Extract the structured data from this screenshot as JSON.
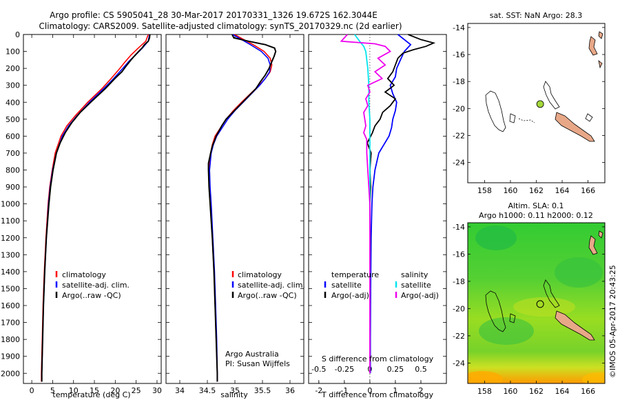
{
  "header": {
    "line1": "Argo profile: CS 5905041_28 30-Mar-2017 20170331_1326 19.672S 162.3044E",
    "line2": "Climatology: CARS2009. Satellite-adjusted climatology: synTS_20170329.nc (2d earlier)"
  },
  "colors": {
    "climatology": "#ff0000",
    "satellite": "#0000ff",
    "argo": "#000000",
    "sal_satellite": "#00e5ee",
    "sal_argo": "#ee00ee",
    "land": "#e8a888"
  },
  "chart_data": [
    {
      "type": "line",
      "title": "temperature",
      "xlabel": "temperature (deg C)",
      "ylabel": "",
      "xlim": [
        -2,
        31
      ],
      "ylim": [
        2060,
        0
      ],
      "xticks": [
        "0",
        "5",
        "10",
        "15",
        "20",
        "25",
        "30"
      ],
      "yticks": [
        "0",
        "100",
        "200",
        "300",
        "400",
        "500",
        "600",
        "700",
        "800",
        "900",
        "1000",
        "1100",
        "1200",
        "1300",
        "1400",
        "1500",
        "1600",
        "1700",
        "1800",
        "1900",
        "2000"
      ],
      "legend": [
        "climatology",
        "satellite-adj. clim.",
        "Argo(..raw -QC)"
      ],
      "series": [
        {
          "name": "climatology",
          "depth": [
            0,
            40,
            80,
            120,
            160,
            200,
            260,
            320,
            400,
            480,
            540,
            600,
            700,
            800,
            900,
            1000,
            1200,
            1400,
            1600,
            1800,
            2000,
            2050
          ],
          "values": [
            27.9,
            27.3,
            25.5,
            23.8,
            22.4,
            21.1,
            19.0,
            16.8,
            13.4,
            10.4,
            8.4,
            7.0,
            5.6,
            4.9,
            4.3,
            3.9,
            3.4,
            3.0,
            2.7,
            2.5,
            2.3,
            2.3
          ]
        },
        {
          "name": "satellite-adj. clim.",
          "depth": [
            0,
            40,
            80,
            120,
            160,
            200,
            260,
            320,
            400,
            480,
            540,
            600,
            700,
            800,
            900,
            1000,
            1200,
            1400,
            1600,
            1800,
            2000,
            2050
          ],
          "values": [
            28.2,
            27.9,
            26.5,
            24.9,
            23.2,
            21.8,
            19.6,
            17.2,
            13.8,
            10.8,
            8.8,
            7.3,
            5.9,
            5.0,
            4.4,
            4.0,
            3.5,
            3.1,
            2.8,
            2.6,
            2.4,
            2.4
          ]
        },
        {
          "name": "Argo(..raw -QC)",
          "depth": [
            0,
            20,
            40,
            60,
            80,
            100,
            140,
            180,
            220,
            260,
            320,
            400,
            460,
            520,
            580,
            640,
            700,
            800,
            900,
            1000,
            1200,
            1400,
            1600,
            1800,
            2000,
            2050
          ],
          "values": [
            28.3,
            28.2,
            27.9,
            27.0,
            26.4,
            25.6,
            24.1,
            22.8,
            21.6,
            19.9,
            17.6,
            14.1,
            11.6,
            9.6,
            8.0,
            6.8,
            5.9,
            5.1,
            4.5,
            4.1,
            3.5,
            3.1,
            2.8,
            2.6,
            2.4,
            2.4
          ]
        }
      ]
    },
    {
      "type": "line",
      "title": "salinity",
      "xlabel": "salinity",
      "xlim": [
        33.75,
        36.25
      ],
      "ylim": [
        2060,
        0
      ],
      "xticks": [
        "34",
        "34.5",
        "35",
        "35.5",
        "36"
      ],
      "legend": [
        "climatology",
        "satellite-adj. clim.",
        "Argo(..raw -QC)"
      ],
      "footer": {
        "line1": "Argo Australia",
        "line2": "PI: Susan Wijffels"
      },
      "series": [
        {
          "name": "climatology",
          "depth": [
            0,
            60,
            100,
            140,
            180,
            220,
            260,
            300,
            350,
            400,
            450,
            500,
            550,
            600,
            650,
            700,
            800,
            900,
            1000,
            1200,
            1400,
            1600,
            1800,
            2000,
            2050
          ],
          "values": [
            34.99,
            35.33,
            35.53,
            35.64,
            35.67,
            35.64,
            35.55,
            35.44,
            35.28,
            35.12,
            34.97,
            34.84,
            34.74,
            34.64,
            34.59,
            34.56,
            34.53,
            34.54,
            34.56,
            34.59,
            34.62,
            34.64,
            34.66,
            34.68,
            34.68
          ]
        },
        {
          "name": "satellite-adj. clim.",
          "depth": [
            0,
            60,
            100,
            140,
            180,
            220,
            260,
            300,
            350,
            400,
            450,
            500,
            550,
            600,
            650,
            700,
            800,
            900,
            1000,
            1200,
            1400,
            1600,
            1800,
            2000,
            2050
          ],
          "values": [
            34.96,
            35.28,
            35.48,
            35.6,
            35.64,
            35.63,
            35.55,
            35.45,
            35.3,
            35.15,
            35.0,
            34.87,
            34.77,
            34.67,
            34.61,
            34.57,
            34.54,
            34.55,
            34.57,
            34.6,
            34.63,
            34.65,
            34.67,
            34.68,
            34.68
          ]
        },
        {
          "name": "Argo(..raw -QC)",
          "depth": [
            0,
            20,
            40,
            60,
            80,
            100,
            130,
            160,
            200,
            240,
            280,
            320,
            380,
            440,
            500,
            540,
            600,
            660,
            700,
            760,
            800,
            900,
            1000,
            1200,
            1400,
            1600,
            1800,
            2000,
            2050
          ],
          "values": [
            34.95,
            34.98,
            35.25,
            35.55,
            35.72,
            35.74,
            35.71,
            35.67,
            35.62,
            35.55,
            35.46,
            35.38,
            35.2,
            35.02,
            34.84,
            34.76,
            34.66,
            34.59,
            34.56,
            34.52,
            34.52,
            34.53,
            34.55,
            34.59,
            34.62,
            34.64,
            34.66,
            34.68,
            34.68
          ]
        }
      ]
    },
    {
      "type": "line",
      "title": "difference from climatology",
      "xlabel": "T difference from climatology",
      "xlabel_top": "S difference from climatology",
      "xlim": [
        -2.4,
        3.0
      ],
      "ylim": [
        2060,
        0
      ],
      "xticks": [
        "-2",
        "-1",
        "0",
        "1",
        "2"
      ],
      "xticks_top": [
        "-0.5",
        "-0.25",
        "0",
        "0.25",
        "0.5"
      ],
      "legend_temperature": {
        "title": "temperature",
        "entries": [
          "satellite",
          "Argo(-adj)"
        ]
      },
      "legend_salinity": {
        "title": "salinity",
        "entries": [
          "satellite",
          "Argo(-adj)"
        ]
      },
      "series": [
        {
          "name": "temperature satellite",
          "depth": [
            0,
            60,
            100,
            150,
            200,
            250,
            300,
            350,
            400,
            450,
            500,
            550,
            600,
            650,
            700,
            800,
            900,
            1000,
            1200,
            1500,
            1800,
            2000
          ],
          "values": [
            1.1,
            1.6,
            1.35,
            1.2,
            1.05,
            1.0,
            0.8,
            0.9,
            1.05,
            1.0,
            0.9,
            0.85,
            0.75,
            0.55,
            0.35,
            0.2,
            0.12,
            0.08,
            0.05,
            0.03,
            0.02,
            0.02
          ]
        },
        {
          "name": "temperature Argo(-adj)",
          "depth": [
            0,
            30,
            50,
            70,
            90,
            110,
            140,
            180,
            220,
            260,
            300,
            340,
            380,
            420,
            460,
            500,
            540,
            580,
            640,
            700,
            800,
            900,
            1000,
            1200,
            1500,
            1800,
            2000
          ],
          "values": [
            1.5,
            2.0,
            2.5,
            2.2,
            1.7,
            1.3,
            1.1,
            1.0,
            0.9,
            0.7,
            0.95,
            0.6,
            1.0,
            0.8,
            0.5,
            0.4,
            0.2,
            0.1,
            -0.1,
            0.05,
            0.0,
            0.03,
            0.0,
            0.01,
            0.0,
            0.0,
            0.0
          ]
        },
        {
          "name": "salinity satellite",
          "depth": [
            0,
            40,
            70,
            100,
            150,
            200,
            300,
            400,
            500,
            600,
            700,
            800,
            900,
            1000,
            1200,
            1500,
            1800,
            2000
          ],
          "values": [
            -0.15,
            -0.1,
            -0.06,
            -0.04,
            -0.03,
            -0.02,
            -0.01,
            -0.01,
            0.0,
            0.0,
            0.0,
            0.0,
            0.0,
            0.0,
            0.0,
            0.0,
            0.0,
            0.0
          ]
        },
        {
          "name": "salinity Argo(-adj)",
          "depth": [
            0,
            40,
            55,
            70,
            100,
            140,
            180,
            220,
            260,
            300,
            340,
            380,
            420,
            460,
            500,
            540,
            580,
            620,
            700,
            800,
            900,
            1000,
            1200,
            1500,
            1800,
            2000
          ],
          "values": [
            -0.22,
            -0.28,
            0.05,
            0.15,
            0.2,
            0.08,
            0.15,
            0.05,
            0.12,
            -0.02,
            0.0,
            -0.04,
            -0.02,
            -0.06,
            -0.05,
            -0.04,
            -0.06,
            -0.03,
            -0.03,
            -0.02,
            -0.01,
            0.0,
            0.0,
            0.0,
            0.0,
            0.0
          ]
        }
      ]
    }
  ],
  "map_top": {
    "title": "sat. SST: NaN Argo: 28.3",
    "xticks": [
      "158",
      "160",
      "162",
      "164",
      "166"
    ],
    "yticks": [
      "-14",
      "-16",
      "-18",
      "-20",
      "-22",
      "-24"
    ],
    "xlim": [
      156.7,
      167.3
    ],
    "ylim": [
      -25.5,
      -13.7
    ],
    "argo_position": {
      "lon": 162.3,
      "lat": -19.67
    }
  },
  "map_bottom": {
    "title_line1": "Altim. SLA: 0.1",
    "title_line2": "Argo h1000: 0.11 h2000: 0.12",
    "xticks": [
      "158",
      "160",
      "162",
      "164",
      "166"
    ],
    "yticks": [
      "-14",
      "-16",
      "-18",
      "-20",
      "-22",
      "-24"
    ],
    "xlim": [
      156.7,
      167.3
    ],
    "ylim": [
      -25.5,
      -13.7
    ],
    "argo_position": {
      "lon": 162.3,
      "lat": -19.67
    }
  },
  "stamp": "©IMOS 05-Apr-2017 20:43:25"
}
